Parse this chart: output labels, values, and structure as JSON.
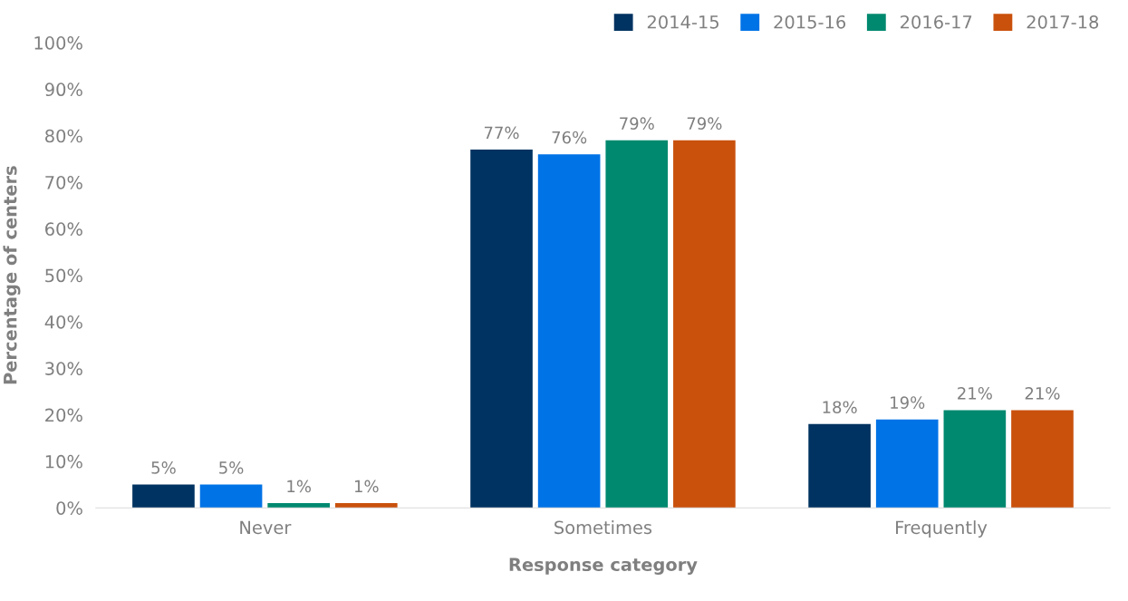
{
  "chart_data": {
    "type": "bar",
    "xlabel": "Response category",
    "ylabel": "Percentage of centers",
    "categories": [
      "Never",
      "Sometimes",
      "Frequently"
    ],
    "series": [
      {
        "name": "2014-15",
        "color": "#003361",
        "values": [
          5,
          77,
          18
        ]
      },
      {
        "name": "2015-16",
        "color": "#0073e6",
        "values": [
          5,
          76,
          19
        ]
      },
      {
        "name": "2016-17",
        "color": "#00896f",
        "values": [
          1,
          79,
          21
        ]
      },
      {
        "name": "2017-18",
        "color": "#c9510c",
        "values": [
          1,
          79,
          21
        ]
      }
    ],
    "ylim": [
      0,
      100
    ],
    "yticks": [
      {
        "value": 0,
        "label": "0%"
      },
      {
        "value": 10,
        "label": "10%"
      },
      {
        "value": 20,
        "label": "20%"
      },
      {
        "value": 30,
        "label": "30%"
      },
      {
        "value": 40,
        "label": "40%"
      },
      {
        "value": 50,
        "label": "50%"
      },
      {
        "value": 60,
        "label": "60%"
      },
      {
        "value": 70,
        "label": "70%"
      },
      {
        "value": 80,
        "label": "80%"
      },
      {
        "value": 90,
        "label": "90%"
      },
      {
        "value": 100,
        "label": "100%"
      }
    ],
    "value_labels": [
      [
        "5%",
        "77%",
        "18%"
      ],
      [
        "5%",
        "76%",
        "19%"
      ],
      [
        "1%",
        "79%",
        "21%"
      ],
      [
        "1%",
        "79%",
        "21%"
      ]
    ],
    "grid": false,
    "legend": "top right"
  }
}
